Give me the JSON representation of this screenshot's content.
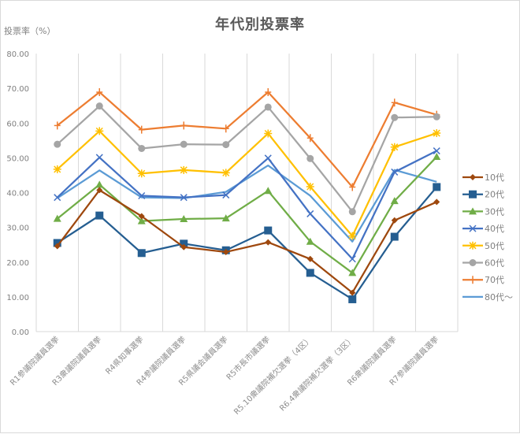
{
  "chart_data": {
    "type": "line",
    "title": "年代別投票率",
    "xlabel": "",
    "ylabel": "投票率（%）",
    "ylim": [
      0,
      80
    ],
    "yticks": [
      "0.00",
      "10.00",
      "20.00",
      "30.00",
      "40.00",
      "50.00",
      "60.00",
      "70.00",
      "80.00"
    ],
    "grid": "vertical",
    "legend_position": "right",
    "categories": [
      "R1参議院議員選挙",
      "R3衆議院議員選挙",
      "R4県知事選挙",
      "R4参議院議員選挙",
      "R5県議会議員選挙",
      "R5市長市議選挙",
      "R5.10衆議院補欠選挙（4区）",
      "R6.4衆議院補欠選挙（3区）",
      "R6衆議院議員選挙",
      "R7参議院議員選挙"
    ],
    "series": [
      {
        "name": "10代",
        "color": "#9e480e",
        "marker": "diamond",
        "values": [
          24.6,
          40.7,
          33.2,
          24.3,
          22.9,
          25.7,
          20.9,
          11.2,
          32.0,
          37.3
        ]
      },
      {
        "name": "20代",
        "color": "#255e91",
        "marker": "square",
        "values": [
          25.5,
          33.4,
          22.6,
          25.3,
          23.4,
          29.1,
          16.9,
          9.3,
          27.3,
          41.6
        ]
      },
      {
        "name": "30代",
        "color": "#70ad47",
        "marker": "triangle",
        "values": [
          32.5,
          42.3,
          31.8,
          32.4,
          32.6,
          40.5,
          25.9,
          16.9,
          37.6,
          50.3
        ]
      },
      {
        "name": "40代",
        "color": "#4472c4",
        "marker": "x",
        "values": [
          38.6,
          50.1,
          39.1,
          38.6,
          39.3,
          49.9,
          33.9,
          20.9,
          45.9,
          52.0
        ]
      },
      {
        "name": "50代",
        "color": "#ffc000",
        "marker": "star",
        "values": [
          46.7,
          57.7,
          45.5,
          46.5,
          45.7,
          57.0,
          41.7,
          27.5,
          53.1,
          57.1
        ]
      },
      {
        "name": "60代",
        "color": "#a5a5a5",
        "marker": "circle",
        "values": [
          53.9,
          64.9,
          52.7,
          53.9,
          53.8,
          64.6,
          49.8,
          34.5,
          61.6,
          61.8
        ]
      },
      {
        "name": "70代",
        "color": "#ed7d31",
        "marker": "plus",
        "values": [
          59.3,
          68.9,
          58.1,
          59.3,
          58.4,
          68.9,
          55.7,
          41.6,
          65.9,
          62.4
        ]
      },
      {
        "name": "80代～",
        "color": "#5b9bd5",
        "marker": "none",
        "values": [
          38.4,
          46.4,
          38.6,
          38.4,
          40.2,
          47.8,
          39.1,
          25.9,
          46.5,
          43.1
        ]
      }
    ]
  }
}
